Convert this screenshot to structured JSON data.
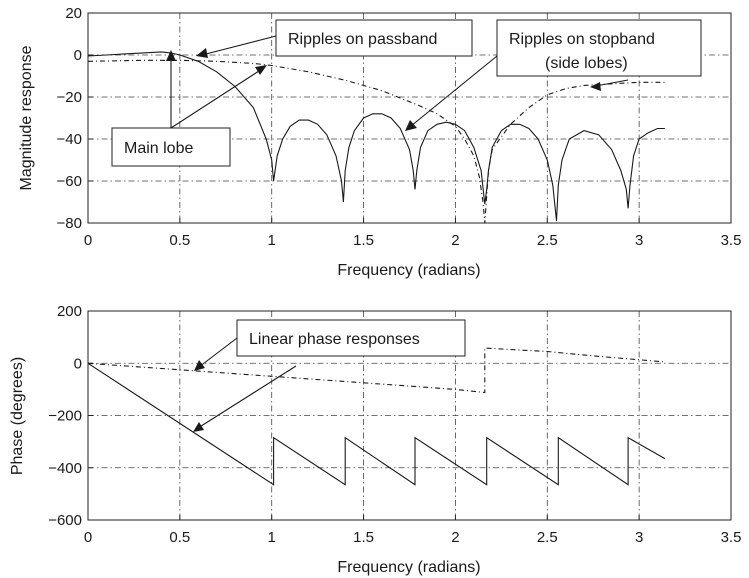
{
  "chart_data": [
    {
      "type": "line",
      "xlabel": "Frequency (radians)",
      "ylabel": "Magnitude response",
      "xlim": [
        0,
        3.5
      ],
      "ylim": [
        -80,
        20
      ],
      "xticks": [
        "0",
        "0.5",
        "1",
        "1.5",
        "2",
        "2.5",
        "3",
        "3.5"
      ],
      "yticks": [
        "20",
        "0",
        "−20",
        "−40",
        "−60",
        "−80"
      ],
      "grid": true,
      "series": [
        {
          "style": "solid",
          "x": [
            0,
            0.1,
            0.2,
            0.3,
            0.4,
            0.45,
            0.5,
            0.6,
            0.7,
            0.8,
            0.9,
            0.97,
            1.0,
            1.01,
            1.03,
            1.06,
            1.1,
            1.15,
            1.2,
            1.25,
            1.3,
            1.35,
            1.38,
            1.39,
            1.4,
            1.42,
            1.45,
            1.5,
            1.55,
            1.6,
            1.65,
            1.7,
            1.75,
            1.77,
            1.78,
            1.79,
            1.81,
            1.85,
            1.9,
            1.95,
            2.0,
            2.05,
            2.1,
            2.14,
            2.16,
            2.17,
            2.18,
            2.2,
            2.25,
            2.3,
            2.35,
            2.4,
            2.45,
            2.5,
            2.53,
            2.55,
            2.56,
            2.58,
            2.62,
            2.7,
            2.78,
            2.85,
            2.9,
            2.93,
            2.94,
            2.95,
            2.97,
            3.0,
            3.05,
            3.1,
            3.14
          ],
          "y": [
            -0.5,
            0,
            0.5,
            1,
            1.5,
            1,
            0,
            -3,
            -8,
            -15,
            -25,
            -40,
            -50,
            -60,
            -48,
            -40,
            -34,
            -31,
            -31,
            -33,
            -38,
            -48,
            -60,
            -70,
            -55,
            -44,
            -36,
            -30,
            -28,
            -28,
            -30,
            -35,
            -45,
            -55,
            -64,
            -55,
            -44,
            -36,
            -33,
            -32,
            -33,
            -36,
            -44,
            -55,
            -71,
            -64,
            -55,
            -44,
            -36,
            -33,
            -33,
            -35,
            -40,
            -50,
            -62,
            -79,
            -62,
            -50,
            -40,
            -36,
            -38,
            -45,
            -55,
            -64,
            -73,
            -62,
            -48,
            -40,
            -37,
            -35,
            -35
          ]
        },
        {
          "style": "dashed",
          "x": [
            0,
            0.3,
            0.5,
            0.7,
            0.9,
            1.0,
            1.2,
            1.4,
            1.6,
            1.8,
            1.9,
            2.0,
            2.05,
            2.1,
            2.13,
            2.15,
            2.16,
            2.18,
            2.2,
            2.3,
            2.4,
            2.5,
            2.6,
            2.7,
            2.8,
            2.9,
            3.0,
            3.14
          ],
          "y": [
            -3,
            -2.5,
            -2.5,
            -3,
            -4,
            -5,
            -8,
            -12,
            -17,
            -24,
            -28,
            -34,
            -40,
            -48,
            -58,
            -70,
            -80,
            -55,
            -45,
            -33,
            -25,
            -19,
            -16,
            -14.5,
            -14,
            -13.5,
            -13,
            -13
          ]
        }
      ],
      "annotations": [
        "Ripples on passband",
        "Ripples on stopband",
        "(side lobes)",
        "Main lobe"
      ]
    },
    {
      "type": "line",
      "xlabel": "Frequency (radians)",
      "ylabel": "Phase (degrees)",
      "xlim": [
        0,
        3.5
      ],
      "ylim": [
        -600,
        200
      ],
      "xticks": [
        "0",
        "0.5",
        "1",
        "1.5",
        "2",
        "2.5",
        "3",
        "3.5"
      ],
      "yticks": [
        "200",
        "0",
        "−200",
        "−400",
        "−600"
      ],
      "grid": true,
      "series": [
        {
          "style": "solid",
          "x": [
            0,
            1.01,
            1.01,
            1.4,
            1.4,
            1.78,
            1.78,
            2.17,
            2.17,
            2.56,
            2.56,
            2.94,
            2.94,
            3.14
          ],
          "y": [
            0,
            -465,
            -285,
            -465,
            -285,
            -465,
            -285,
            -465,
            -285,
            -465,
            -285,
            -465,
            -285,
            -365
          ]
        },
        {
          "style": "dashed",
          "x": [
            0,
            0.5,
            1.0,
            1.5,
            2.0,
            2.16,
            2.16,
            2.5,
            2.8,
            3.14
          ],
          "y": [
            0,
            -25,
            -50,
            -75,
            -100,
            -112,
            58,
            45,
            25,
            5
          ]
        }
      ],
      "annotations": [
        "Linear phase responses"
      ]
    }
  ]
}
